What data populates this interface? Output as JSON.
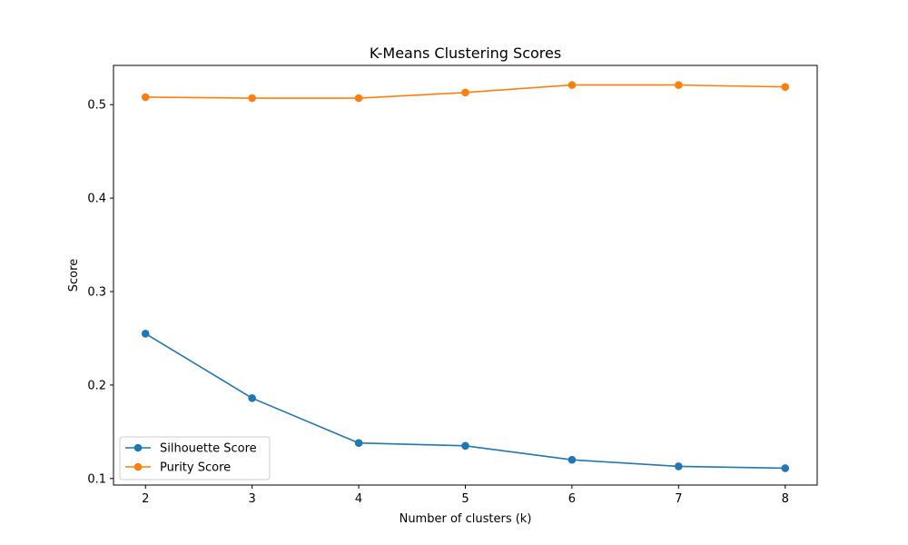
{
  "chart_data": {
    "type": "line",
    "title": "K-Means Clustering Scores",
    "xlabel": "Number of clusters (k)",
    "ylabel": "Score",
    "x": [
      2,
      3,
      4,
      5,
      6,
      7,
      8
    ],
    "x_ticks": [
      "2",
      "3",
      "4",
      "5",
      "6",
      "7",
      "8"
    ],
    "y_ticks": [
      "0.1",
      "0.2",
      "0.3",
      "0.4",
      "0.5"
    ],
    "xlim": [
      1.7,
      8.3
    ],
    "ylim": [
      0.093,
      0.542
    ],
    "grid": false,
    "legend_placement": "lower-left",
    "series": [
      {
        "name": "Silhouette Score",
        "color": "#1f77b4",
        "values": [
          0.255,
          0.186,
          0.138,
          0.135,
          0.12,
          0.113,
          0.111
        ]
      },
      {
        "name": "Purity Score",
        "color": "#ff7f0e",
        "values": [
          0.508,
          0.507,
          0.507,
          0.513,
          0.521,
          0.521,
          0.519
        ]
      }
    ]
  }
}
